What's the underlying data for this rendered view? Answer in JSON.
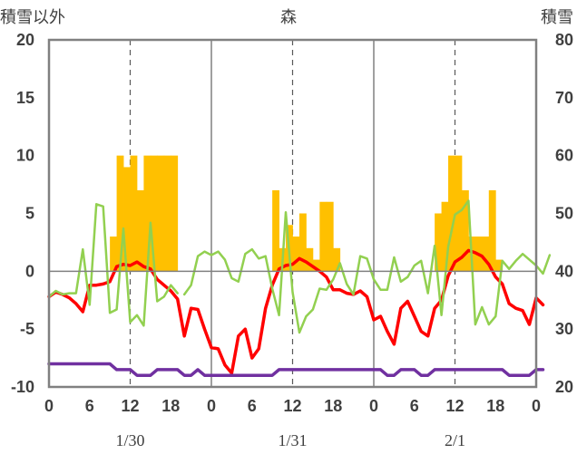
{
  "chart_data": {
    "type": "bar+line",
    "title": "森",
    "left_axis_label": "積雪以外",
    "right_axis_label": "積雪",
    "left_ylim": [
      -10,
      20
    ],
    "right_ylim": [
      20,
      80
    ],
    "left_ticks": [
      "20",
      "15",
      "10",
      "5",
      "0",
      "-5",
      "-10"
    ],
    "right_ticks": [
      "80",
      "70",
      "60",
      "50",
      "40",
      "30",
      "20"
    ],
    "x_tick_labels": [
      "0",
      "6",
      "12",
      "18",
      "0",
      "6",
      "12",
      "18",
      "0",
      "6",
      "12",
      "18",
      "0"
    ],
    "date_labels": [
      "1/30",
      "1/31",
      "2/1"
    ],
    "x_range_hours": [
      0,
      72
    ],
    "grid": "dashed vertical at 12h, solid vertical at day boundaries, solid horizontal at 0",
    "colors": {
      "snow_bars": "#FFC000",
      "temperature": "#FF0000",
      "green_series": "#92D050",
      "purple_series": "#7030A0",
      "axes": "#808080"
    },
    "series": [
      {
        "kind": "bars",
        "axis": "left",
        "hourly_start": 9,
        "values": [
          3,
          10,
          9,
          10,
          7,
          10,
          10,
          10,
          10,
          10
        ]
      },
      {
        "kind": "bars",
        "axis": "left",
        "hourly_start": 33,
        "values": [
          7,
          2,
          4,
          3,
          5,
          2,
          1,
          6,
          6,
          2
        ]
      },
      {
        "kind": "bars",
        "axis": "left",
        "hourly_start": 57,
        "values": [
          5,
          6,
          10,
          10,
          7,
          3,
          3,
          3,
          7,
          1
        ]
      },
      {
        "kind": "line",
        "axis": "left",
        "color_key": "temperature",
        "values": [
          -2.2,
          -1.8,
          -2.0,
          -2.3,
          -2.8,
          -3.5,
          -1.2,
          -1.2,
          -1.1,
          -0.9,
          0.4,
          0.6,
          0.5,
          0.8,
          0.4,
          0.2,
          -0.7,
          -1.2,
          -1.7,
          -2.4,
          -5.6,
          -3.2,
          -3.3,
          -5.0,
          -6.6,
          -6.7,
          -8.1,
          -8.8,
          -5.6,
          -5.0,
          -7.5,
          -6.7,
          -3.2,
          -1.2,
          0.2,
          0.5,
          0.6,
          1.1,
          0.8,
          0.4,
          0.0,
          -0.5,
          -1.6,
          -1.6,
          -1.9,
          -2.0,
          -1.7,
          -2.2,
          -4.2,
          -3.9,
          -5.2,
          -6.3,
          -3.2,
          -2.6,
          -3.9,
          -5.2,
          -5.6,
          -3.2,
          -2.5,
          -0.4,
          0.8,
          1.2,
          1.8,
          1.6,
          1.3,
          0.6,
          -0.5,
          -1.1,
          -2.8,
          -3.2,
          -3.4,
          -4.6,
          -2.3,
          -2.9
        ]
      },
      {
        "kind": "line",
        "axis": "left",
        "color_key": "green_series",
        "segments": [
          [
            -2.2,
            -1.7,
            -2.0,
            -1.9,
            -1.9,
            1.9,
            -2.9,
            5.8,
            5.6,
            -3.6,
            -3.3,
            3.7,
            -4.4,
            -3.8,
            -4.7,
            4.2,
            -2.6,
            -2.2,
            -1.2,
            -1.9
          ],
          [
            -2.0,
            -1.2,
            1.3,
            1.7,
            1.4,
            1.7,
            1.0,
            -0.6,
            -0.9,
            1.5,
            1.9,
            1.1,
            1.3,
            -1.5,
            -3.8,
            5.1,
            -1.8,
            -5.3,
            -3.9,
            -3.3,
            -1.5,
            -1.6,
            -0.7,
            0.7,
            -1.1,
            -2.0,
            1.3,
            1.1,
            -0.7,
            -1.6,
            -1.6,
            1.2,
            -0.9,
            -0.5,
            0.5,
            0.9,
            -1.9,
            2.2,
            -3.8,
            2.1,
            4.9,
            5.3,
            6.1,
            -4.6,
            -3.1,
            -4.6,
            -3.9,
            0.9,
            0.2,
            0.9,
            1.5,
            1.0,
            0.5,
            -0.2,
            1.4
          ]
        ],
        "segment_starts": [
          0,
          20
        ]
      },
      {
        "kind": "line",
        "axis": "left",
        "color_key": "purple_series",
        "values": [
          -8,
          -8,
          -8,
          -8,
          -8,
          -8,
          -8,
          -8,
          -8,
          -8,
          -8.5,
          -8.5,
          -8.5,
          -9,
          -9,
          -9,
          -8.5,
          -8.5,
          -8.5,
          -8.5,
          -9,
          -9,
          -8.5,
          -9,
          -9,
          -9,
          -9,
          -9,
          -9,
          -9,
          -9,
          -9,
          -9,
          -9,
          -8.5,
          -8.5,
          -8.5,
          -8.5,
          -8.5,
          -8.5,
          -8.5,
          -8.5,
          -8.5,
          -8.5,
          -8.5,
          -8.5,
          -8.5,
          -8.5,
          -8.5,
          -8.5,
          -9,
          -9,
          -8.5,
          -8.5,
          -8.5,
          -9,
          -9,
          -8.5,
          -8.5,
          -8.5,
          -8.5,
          -8.5,
          -8.5,
          -8.5,
          -8.5,
          -8.5,
          -8.5,
          -8.5,
          -9,
          -9,
          -9,
          -9,
          -8.5,
          -8.5
        ]
      }
    ]
  }
}
